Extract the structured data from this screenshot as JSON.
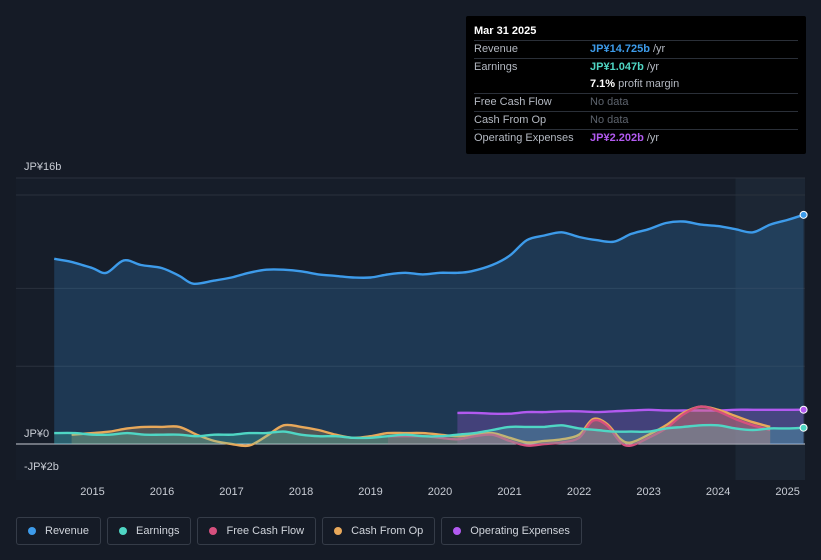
{
  "tooltip": {
    "date": "Mar 31 2025",
    "rows": [
      {
        "label": "Revenue",
        "value": "JP¥14.725b",
        "unit": "/yr",
        "color": "#3d9bea"
      },
      {
        "label": "Earnings",
        "value": "JP¥1.047b",
        "unit": "/yr",
        "color": "#4fd6c4"
      },
      {
        "label": "",
        "value": "7.1%",
        "unit": "profit margin",
        "color": "#ffffff"
      },
      {
        "label": "Free Cash Flow",
        "value": "No data",
        "unit": "",
        "color": "#5d636d"
      },
      {
        "label": "Cash From Op",
        "value": "No data",
        "unit": "",
        "color": "#5d636d"
      },
      {
        "label": "Operating Expenses",
        "value": "JP¥2.202b",
        "unit": "/yr",
        "color": "#b25af0"
      }
    ]
  },
  "legend": [
    {
      "label": "Revenue",
      "color": "#3d9bea"
    },
    {
      "label": "Earnings",
      "color": "#4fd6c4"
    },
    {
      "label": "Free Cash Flow",
      "color": "#d6507e"
    },
    {
      "label": "Cash From Op",
      "color": "#e8a85a"
    },
    {
      "label": "Operating Expenses",
      "color": "#b25af0"
    }
  ],
  "chart_data": {
    "type": "line",
    "title": "",
    "xlabel": "",
    "ylabel": "",
    "ylim": [
      -2,
      16
    ],
    "y_tick_labels": [
      "JP¥16b",
      "JP¥0",
      "-JP¥2b"
    ],
    "x_tick_labels": [
      "2015",
      "2016",
      "2017",
      "2018",
      "2019",
      "2020",
      "2021",
      "2022",
      "2023",
      "2024",
      "2025"
    ],
    "x_ticks": [
      2015,
      2016,
      2017,
      2018,
      2019,
      2020,
      2021,
      2022,
      2023,
      2024,
      2025
    ],
    "xlim": [
      2013.9,
      2025.25
    ],
    "forecast_start": 2024.25,
    "series": [
      {
        "name": "Revenue",
        "color": "#3d9bea",
        "fill": true,
        "x": [
          2014.45,
          2014.7,
          2015.0,
          2015.2,
          2015.45,
          2015.7,
          2016.0,
          2016.25,
          2016.45,
          2016.75,
          2017.0,
          2017.25,
          2017.5,
          2017.75,
          2018.0,
          2018.25,
          2018.5,
          2018.75,
          2019.0,
          2019.25,
          2019.5,
          2019.75,
          2020.0,
          2020.25,
          2020.45,
          2020.75,
          2021.0,
          2021.25,
          2021.5,
          2021.75,
          2022.0,
          2022.25,
          2022.5,
          2022.75,
          2023.0,
          2023.25,
          2023.5,
          2023.75,
          2024.0,
          2024.25,
          2024.5,
          2024.75,
          2025.0,
          2025.23
        ],
        "values": [
          11.9,
          11.7,
          11.3,
          11.0,
          11.8,
          11.5,
          11.3,
          10.8,
          10.3,
          10.5,
          10.7,
          11.0,
          11.2,
          11.2,
          11.1,
          10.9,
          10.8,
          10.7,
          10.7,
          10.9,
          11.0,
          10.9,
          11.0,
          11.0,
          11.1,
          11.5,
          12.1,
          13.1,
          13.4,
          13.6,
          13.3,
          13.1,
          13.0,
          13.5,
          13.8,
          14.2,
          14.3,
          14.1,
          14.0,
          13.8,
          13.6,
          14.1,
          14.4,
          14.725
        ]
      },
      {
        "name": "Earnings",
        "color": "#4fd6c4",
        "fill": true,
        "x": [
          2014.45,
          2014.75,
          2015.0,
          2015.25,
          2015.5,
          2015.75,
          2016.0,
          2016.25,
          2016.5,
          2016.75,
          2017.0,
          2017.25,
          2017.5,
          2017.75,
          2018.0,
          2018.25,
          2018.5,
          2018.75,
          2019.0,
          2019.25,
          2019.5,
          2019.75,
          2020.0,
          2020.25,
          2020.5,
          2020.75,
          2021.0,
          2021.25,
          2021.5,
          2021.75,
          2022.0,
          2022.25,
          2022.5,
          2022.75,
          2023.0,
          2023.25,
          2023.5,
          2023.75,
          2024.0,
          2024.25,
          2024.5,
          2024.75,
          2025.0,
          2025.23
        ],
        "values": [
          0.7,
          0.7,
          0.6,
          0.6,
          0.7,
          0.6,
          0.6,
          0.6,
          0.5,
          0.6,
          0.6,
          0.7,
          0.7,
          0.8,
          0.6,
          0.5,
          0.5,
          0.4,
          0.4,
          0.5,
          0.6,
          0.5,
          0.5,
          0.6,
          0.7,
          0.9,
          1.1,
          1.1,
          1.1,
          1.2,
          1.0,
          0.9,
          0.8,
          0.8,
          0.8,
          1.0,
          1.1,
          1.2,
          1.2,
          1.0,
          0.9,
          1.0,
          1.0,
          1.047
        ]
      },
      {
        "name": "Free Cash Flow",
        "color": "#d6507e",
        "fill": true,
        "x": [
          2019.25,
          2019.75,
          2020.0,
          2020.25,
          2020.5,
          2020.75,
          2021.0,
          2021.25,
          2021.5,
          2021.75,
          2022.0,
          2022.2,
          2022.4,
          2022.6,
          2022.75,
          2023.0,
          2023.25,
          2023.5,
          2023.75,
          2024.0,
          2024.25,
          2024.5,
          2024.75
        ],
        "values": [
          0.5,
          0.5,
          0.4,
          0.3,
          0.5,
          0.6,
          0.2,
          -0.1,
          0.0,
          0.1,
          0.4,
          1.5,
          1.2,
          0.1,
          -0.1,
          0.4,
          1.0,
          1.9,
          2.4,
          2.1,
          1.6,
          1.2,
          0.9
        ]
      },
      {
        "name": "Cash From Op",
        "color": "#e8a85a",
        "fill": true,
        "x": [
          2014.7,
          2015.0,
          2015.25,
          2015.5,
          2015.75,
          2016.0,
          2016.25,
          2016.5,
          2016.75,
          2017.0,
          2017.25,
          2017.5,
          2017.75,
          2018.0,
          2018.25,
          2018.5,
          2018.75,
          2019.0,
          2019.25,
          2019.5,
          2019.75,
          2020.0,
          2020.25,
          2020.5,
          2020.75,
          2021.0,
          2021.25,
          2021.5,
          2021.75,
          2022.0,
          2022.2,
          2022.4,
          2022.6,
          2022.75,
          2023.0,
          2023.25,
          2023.5,
          2023.75,
          2024.0,
          2024.25,
          2024.5,
          2024.75
        ],
        "values": [
          0.6,
          0.7,
          0.8,
          1.0,
          1.1,
          1.1,
          1.1,
          0.6,
          0.2,
          0.0,
          -0.1,
          0.5,
          1.2,
          1.1,
          0.9,
          0.6,
          0.4,
          0.5,
          0.7,
          0.7,
          0.7,
          0.6,
          0.5,
          0.6,
          0.7,
          0.4,
          0.1,
          0.2,
          0.3,
          0.6,
          1.6,
          1.3,
          0.3,
          0.1,
          0.6,
          1.2,
          2.0,
          2.4,
          2.2,
          1.8,
          1.4,
          1.1
        ]
      },
      {
        "name": "Operating Expenses",
        "color": "#b25af0",
        "fill": true,
        "x": [
          2020.25,
          2020.5,
          2020.75,
          2021.0,
          2021.25,
          2021.5,
          2021.75,
          2022.0,
          2022.25,
          2022.5,
          2022.75,
          2023.0,
          2023.25,
          2023.5,
          2023.75,
          2024.0,
          2024.25,
          2024.5,
          2024.75,
          2025.0,
          2025.23
        ],
        "values": [
          2.0,
          2.0,
          1.95,
          1.95,
          2.05,
          2.05,
          2.1,
          2.1,
          2.05,
          2.1,
          2.15,
          2.2,
          2.15,
          2.15,
          2.15,
          2.15,
          2.2,
          2.2,
          2.2,
          2.2,
          2.202
        ]
      }
    ]
  }
}
